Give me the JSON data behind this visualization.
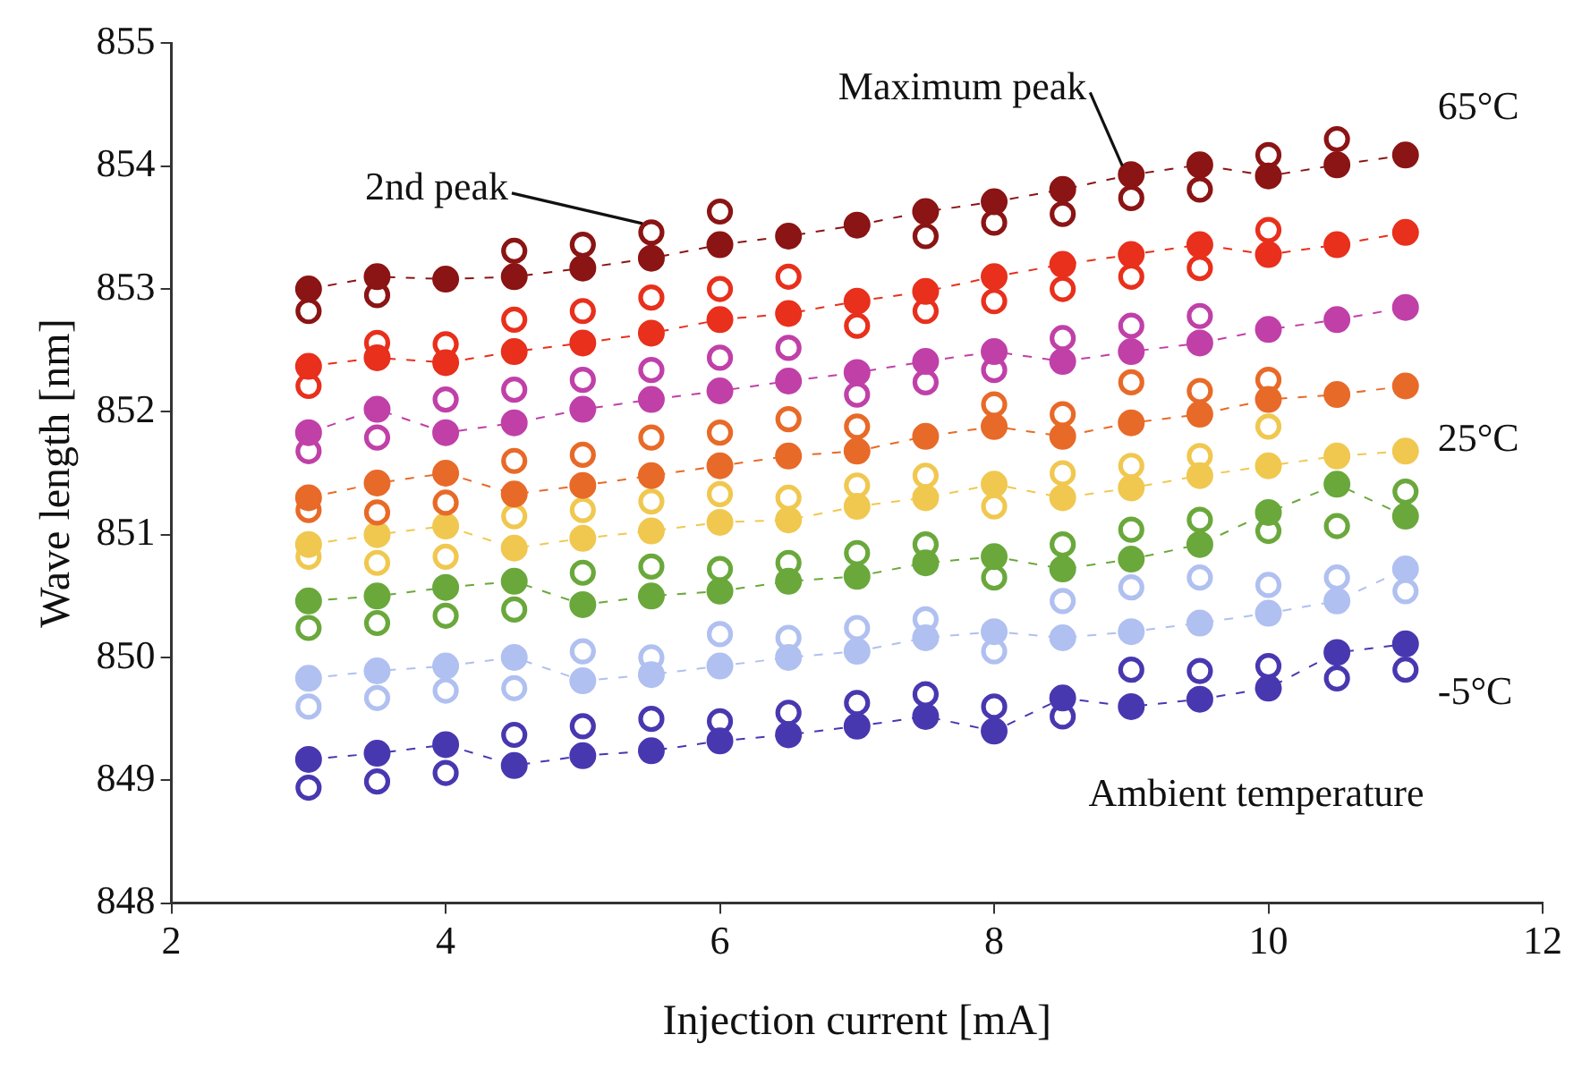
{
  "chart_data": {
    "type": "scatter",
    "xlabel": "Injection current [mA]",
    "ylabel": "Wave length [nm]",
    "x": [
      3,
      3.5,
      4,
      4.5,
      5,
      5.5,
      6,
      6.5,
      7,
      7.5,
      8,
      8.5,
      9,
      9.5,
      10,
      10.5,
      11
    ],
    "xlim": [
      2,
      12
    ],
    "xticks": [
      2,
      4,
      6,
      8,
      10,
      12
    ],
    "ylim": [
      848,
      855
    ],
    "yticks": [
      848,
      849,
      850,
      851,
      852,
      853,
      854,
      855
    ],
    "grid": false,
    "legend": false,
    "marker": "circle",
    "annotations": [
      {
        "text": "Maximum peak",
        "x": 9,
        "y": 853.93
      },
      {
        "text": "2nd peak",
        "x": 5.5,
        "y": 853.46
      },
      "Ambient temperature"
    ],
    "series": [
      {
        "name": "65°C",
        "type": "line",
        "color": "#8b1414",
        "line_style": "dashed",
        "values": [
          853.0,
          853.1,
          853.08,
          853.1,
          853.17,
          853.25,
          853.36,
          853.43,
          853.52,
          853.63,
          853.71,
          853.81,
          853.93,
          854.01,
          853.92,
          854.01,
          854.09
        ]
      },
      {
        "color": "#8b1414",
        "values": [
          852.82,
          852.95,
          null,
          853.31,
          853.36,
          853.46,
          853.63,
          null,
          null,
          853.43,
          853.54,
          853.61,
          853.74,
          853.81,
          854.09,
          854.22,
          null
        ]
      },
      {
        "type": "line",
        "color": "#e8301c",
        "line_style": "dashed",
        "values": [
          852.37,
          852.44,
          852.4,
          852.49,
          852.56,
          852.64,
          852.75,
          852.8,
          852.9,
          852.98,
          853.1,
          853.2,
          853.28,
          853.36,
          853.28,
          853.36,
          853.46
        ]
      },
      {
        "color": "#e8301c",
        "values": [
          852.21,
          852.56,
          852.55,
          852.75,
          852.82,
          852.93,
          853.0,
          853.1,
          852.7,
          852.82,
          852.9,
          853.0,
          853.1,
          853.17,
          853.48,
          null,
          null
        ]
      },
      {
        "type": "line",
        "color": "#c040a8",
        "line_style": "dashed",
        "values": [
          851.83,
          852.02,
          851.83,
          851.91,
          852.02,
          852.1,
          852.17,
          852.25,
          852.32,
          852.41,
          852.49,
          852.41,
          852.49,
          852.56,
          852.67,
          852.75,
          852.85
        ]
      },
      {
        "color": "#c040a8",
        "values": [
          851.68,
          851.79,
          852.1,
          852.18,
          852.26,
          852.34,
          852.44,
          852.52,
          852.14,
          852.24,
          852.34,
          852.6,
          852.7,
          852.78,
          null,
          null,
          null
        ]
      },
      {
        "type": "line",
        "color": "#e86a28",
        "line_style": "dashed",
        "values": [
          851.3,
          851.42,
          851.5,
          851.33,
          851.4,
          851.48,
          851.56,
          851.64,
          851.68,
          851.8,
          851.88,
          851.8,
          851.91,
          851.98,
          852.1,
          852.14,
          852.21
        ]
      },
      {
        "color": "#e86a28",
        "values": [
          851.2,
          851.18,
          851.26,
          851.6,
          851.65,
          851.79,
          851.83,
          851.94,
          851.88,
          null,
          852.06,
          851.98,
          852.24,
          852.17,
          852.26,
          null,
          null
        ]
      },
      {
        "name": "25°C",
        "type": "line",
        "color": "#f0c850",
        "line_style": "dashed",
        "values": [
          850.92,
          851.0,
          851.07,
          850.89,
          850.97,
          851.03,
          851.1,
          851.12,
          851.23,
          851.3,
          851.41,
          851.3,
          851.38,
          851.48,
          851.56,
          851.64,
          851.68
        ]
      },
      {
        "color": "#f0c850",
        "values": [
          850.82,
          850.77,
          850.82,
          851.15,
          851.2,
          851.27,
          851.33,
          851.3,
          851.4,
          851.48,
          851.23,
          851.5,
          851.56,
          851.64,
          851.88,
          null,
          null
        ]
      },
      {
        "type": "line",
        "color": "#6aa83c",
        "line_style": "dashed",
        "values": [
          850.46,
          850.5,
          850.57,
          850.62,
          850.43,
          850.5,
          850.54,
          850.62,
          850.66,
          850.77,
          850.82,
          850.72,
          850.8,
          850.92,
          851.18,
          851.41,
          851.15
        ]
      },
      {
        "color": "#6aa83c",
        "values": [
          850.24,
          850.28,
          850.34,
          850.39,
          850.69,
          850.74,
          850.72,
          850.77,
          850.85,
          850.92,
          850.65,
          850.92,
          851.04,
          851.12,
          851.03,
          851.07,
          851.35
        ]
      },
      {
        "type": "line",
        "color": "#b0c0f0",
        "line_style": "dashed",
        "values": [
          849.83,
          849.89,
          849.93,
          850.0,
          849.81,
          849.86,
          849.93,
          850.0,
          850.05,
          850.16,
          850.21,
          850.16,
          850.21,
          850.28,
          850.36,
          850.46,
          850.72
        ]
      },
      {
        "color": "#b0c0f0",
        "values": [
          849.6,
          849.67,
          849.73,
          849.75,
          850.05,
          850.0,
          850.19,
          850.16,
          850.24,
          850.31,
          850.05,
          850.46,
          850.57,
          850.65,
          850.59,
          850.65,
          850.54
        ]
      },
      {
        "name": "-5°C",
        "type": "line",
        "color": "#4838b0",
        "line_style": "dashed",
        "values": [
          849.17,
          849.22,
          849.29,
          849.12,
          849.2,
          849.24,
          849.32,
          849.37,
          849.44,
          849.52,
          849.4,
          849.67,
          849.6,
          849.66,
          849.75,
          850.04,
          850.11
        ]
      },
      {
        "color": "#4838b0",
        "values": [
          848.94,
          848.99,
          849.06,
          849.37,
          849.44,
          849.5,
          849.48,
          849.55,
          849.63,
          849.7,
          849.6,
          849.52,
          849.9,
          849.89,
          849.93,
          849.83,
          849.9
        ]
      }
    ]
  }
}
